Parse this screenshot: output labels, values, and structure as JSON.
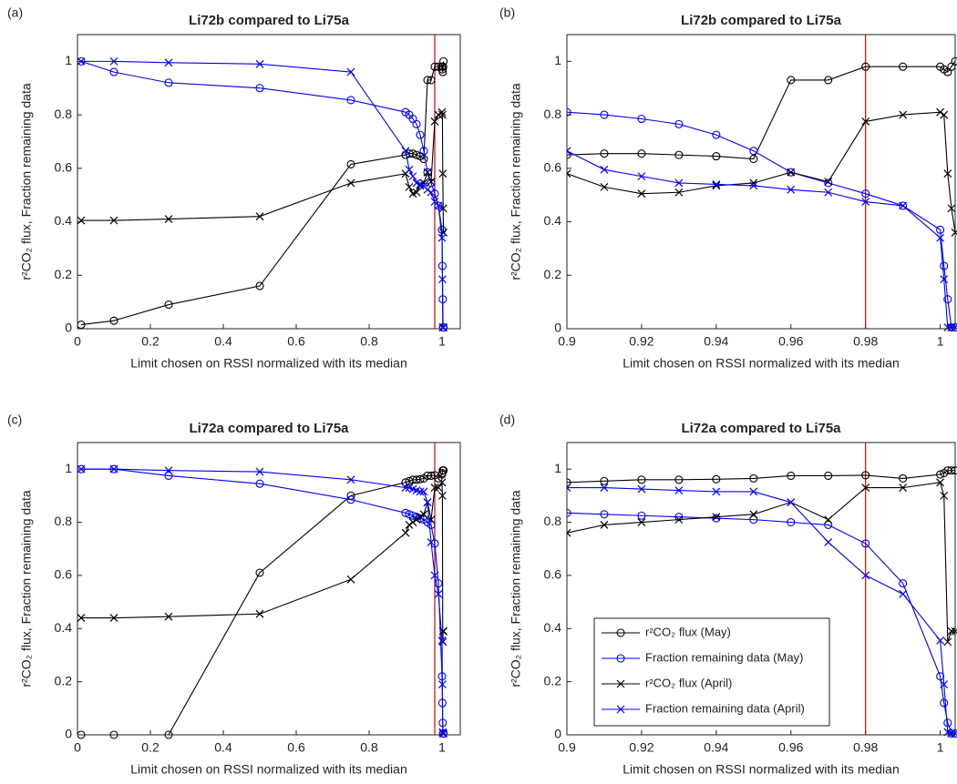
{
  "chart_data": [
    {
      "type": "line",
      "panel_label": "(a)",
      "title": "Li72b compared to Li75a",
      "x_label": "Limit chosen on RSSI normalized with its median",
      "y_label": "r²CO₂ flux, Fraction remaining data",
      "x": [
        0.01,
        0.1,
        0.25,
        0.5,
        0.75,
        0.9,
        0.91,
        0.92,
        0.93,
        0.94,
        0.95,
        0.96,
        0.97,
        0.98,
        0.99,
        1.0,
        1.001,
        1.002,
        1.003,
        1.004
      ],
      "series": [
        {
          "color": "#000000",
          "marker": "circle",
          "values": [
            0.015,
            0.03,
            0.09,
            0.16,
            0.615,
            0.65,
            0.655,
            0.655,
            0.65,
            0.645,
            0.635,
            0.93,
            0.93,
            0.98,
            0.98,
            0.98,
            0.97,
            0.96,
            0.98,
            1.0
          ]
        },
        {
          "color": "#0000ff",
          "marker": "circle",
          "values": [
            1.0,
            0.96,
            0.92,
            0.9,
            0.855,
            0.81,
            0.8,
            0.785,
            0.765,
            0.725,
            0.665,
            0.585,
            0.545,
            0.505,
            0.46,
            0.37,
            0.235,
            0.11,
            0.005,
            0.005
          ]
        },
        {
          "color": "#000000",
          "marker": "x",
          "values": [
            0.405,
            0.405,
            0.41,
            0.42,
            0.545,
            0.58,
            0.53,
            0.505,
            0.51,
            0.535,
            0.545,
            0.585,
            0.55,
            0.775,
            0.8,
            0.81,
            0.8,
            0.58,
            0.45,
            0.36
          ]
        },
        {
          "color": "#0000ff",
          "marker": "x",
          "values": [
            1.0,
            1.0,
            0.995,
            0.99,
            0.96,
            0.665,
            0.595,
            0.57,
            0.545,
            0.54,
            0.535,
            0.52,
            0.51,
            0.475,
            0.46,
            0.34,
            0.185,
            0.005,
            0.005,
            0.005
          ]
        }
      ],
      "vline": 0.98,
      "xlim": [
        0,
        1.05
      ],
      "ylim": [
        0,
        1.1
      ],
      "xticks": [
        0,
        0.2,
        0.4,
        0.6,
        0.8,
        1
      ],
      "yticks": [
        0,
        0.2,
        0.4,
        0.6,
        0.8,
        1
      ]
    },
    {
      "type": "line",
      "panel_label": "(b)",
      "title": "Li72b compared to Li75a",
      "x_label": "Limit chosen on RSSI normalized with its median",
      "y_label": "r²CO₂ flux, Fraction remaining data",
      "x": [
        0.9,
        0.91,
        0.92,
        0.93,
        0.94,
        0.95,
        0.96,
        0.97,
        0.98,
        0.99,
        1.0,
        1.001,
        1.002,
        1.003,
        1.004
      ],
      "series": [
        {
          "color": "#000000",
          "marker": "circle",
          "values": [
            0.65,
            0.655,
            0.655,
            0.65,
            0.645,
            0.635,
            0.93,
            0.93,
            0.98,
            0.98,
            0.98,
            0.97,
            0.96,
            0.98,
            1.0
          ]
        },
        {
          "color": "#0000ff",
          "marker": "circle",
          "values": [
            0.81,
            0.8,
            0.785,
            0.765,
            0.725,
            0.665,
            0.585,
            0.545,
            0.505,
            0.46,
            0.37,
            0.235,
            0.11,
            0.005,
            0.005
          ]
        },
        {
          "color": "#000000",
          "marker": "x",
          "values": [
            0.58,
            0.53,
            0.505,
            0.51,
            0.535,
            0.545,
            0.585,
            0.55,
            0.775,
            0.8,
            0.81,
            0.8,
            0.58,
            0.45,
            0.36
          ]
        },
        {
          "color": "#0000ff",
          "marker": "x",
          "values": [
            0.665,
            0.595,
            0.57,
            0.545,
            0.54,
            0.535,
            0.52,
            0.51,
            0.475,
            0.46,
            0.34,
            0.185,
            0.005,
            0.005,
            0.005
          ]
        }
      ],
      "vline": 0.98,
      "xlim": [
        0.9,
        1.004
      ],
      "ylim": [
        0,
        1.1
      ],
      "xticks": [
        0.9,
        0.92,
        0.94,
        0.96,
        0.98,
        1
      ],
      "yticks": [
        0,
        0.2,
        0.4,
        0.6,
        0.8,
        1
      ]
    },
    {
      "type": "line",
      "panel_label": "(c)",
      "title": "Li72a compared to Li75a",
      "x_label": "Limit chosen on RSSI normalized with its median",
      "y_label": "r²CO₂ flux, Fraction remaining data",
      "x": [
        0.01,
        0.1,
        0.25,
        0.5,
        0.75,
        0.9,
        0.91,
        0.92,
        0.93,
        0.94,
        0.95,
        0.96,
        0.97,
        0.98,
        0.99,
        1.0,
        1.001,
        1.002,
        1.003,
        1.004
      ],
      "series": [
        {
          "color": "#000000",
          "marker": "circle",
          "values": [
            0,
            0,
            0,
            0.61,
            0.9,
            0.95,
            0.955,
            0.96,
            0.96,
            0.962,
            0.965,
            0.975,
            0.975,
            0.977,
            0.965,
            0.98,
            0.985,
            0.995,
            0.995,
            0.995
          ]
        },
        {
          "color": "#0000ff",
          "marker": "circle",
          "values": [
            1.0,
            1.0,
            0.975,
            0.945,
            0.885,
            0.835,
            0.83,
            0.825,
            0.82,
            0.815,
            0.81,
            0.8,
            0.79,
            0.72,
            0.57,
            0.22,
            0.12,
            0.045,
            0.005,
            0.005
          ]
        },
        {
          "color": "#000000",
          "marker": "x",
          "values": [
            0.44,
            0.44,
            0.445,
            0.455,
            0.585,
            0.76,
            0.79,
            0.8,
            0.81,
            0.82,
            0.83,
            0.875,
            0.81,
            0.93,
            0.93,
            0.95,
            0.9,
            0.35,
            0.39,
            0.39
          ]
        },
        {
          "color": "#0000ff",
          "marker": "x",
          "values": [
            1.0,
            1.0,
            0.995,
            0.99,
            0.96,
            0.93,
            0.93,
            0.925,
            0.92,
            0.915,
            0.915,
            0.875,
            0.725,
            0.6,
            0.53,
            0.355,
            0.19,
            0.01,
            0.005,
            0.005
          ]
        }
      ],
      "vline": 0.98,
      "xlim": [
        0,
        1.05
      ],
      "ylim": [
        0,
        1.1
      ],
      "xticks": [
        0,
        0.2,
        0.4,
        0.6,
        0.8,
        1
      ],
      "yticks": [
        0,
        0.2,
        0.4,
        0.6,
        0.8,
        1
      ]
    },
    {
      "type": "line",
      "panel_label": "(d)",
      "title": "Li72a compared to Li75a",
      "x_label": "Limit chosen on RSSI normalized with its median",
      "y_label": "r²CO₂ flux, Fraction remaining data",
      "x": [
        0.9,
        0.91,
        0.92,
        0.93,
        0.94,
        0.95,
        0.96,
        0.97,
        0.98,
        0.99,
        1.0,
        1.001,
        1.002,
        1.003,
        1.004
      ],
      "series": [
        {
          "name": "r²CO₂ flux (May)",
          "color": "#000000",
          "marker": "circle",
          "values": [
            0.95,
            0.955,
            0.96,
            0.96,
            0.962,
            0.965,
            0.975,
            0.975,
            0.977,
            0.965,
            0.98,
            0.985,
            0.995,
            0.995,
            0.995
          ]
        },
        {
          "name": "Fraction remaining data (May)",
          "color": "#0000ff",
          "marker": "circle",
          "values": [
            0.835,
            0.83,
            0.825,
            0.82,
            0.815,
            0.81,
            0.8,
            0.79,
            0.72,
            0.57,
            0.22,
            0.12,
            0.045,
            0.005,
            0.005
          ]
        },
        {
          "name": "r²CO₂ flux (April)",
          "color": "#000000",
          "marker": "x",
          "values": [
            0.76,
            0.79,
            0.8,
            0.81,
            0.82,
            0.83,
            0.875,
            0.81,
            0.93,
            0.93,
            0.95,
            0.9,
            0.35,
            0.39,
            0.39
          ]
        },
        {
          "name": "Fraction remaining data (April)",
          "color": "#0000ff",
          "marker": "x",
          "values": [
            0.93,
            0.93,
            0.925,
            0.92,
            0.915,
            0.915,
            0.875,
            0.725,
            0.6,
            0.53,
            0.355,
            0.19,
            0.01,
            0.005,
            0.005
          ]
        }
      ],
      "legend": "lower left",
      "vline": 0.98,
      "xlim": [
        0.9,
        1.004
      ],
      "ylim": [
        0,
        1.1
      ],
      "xticks": [
        0.9,
        0.92,
        0.94,
        0.96,
        0.98,
        1
      ],
      "yticks": [
        0,
        0.2,
        0.4,
        0.6,
        0.8,
        1
      ]
    }
  ]
}
